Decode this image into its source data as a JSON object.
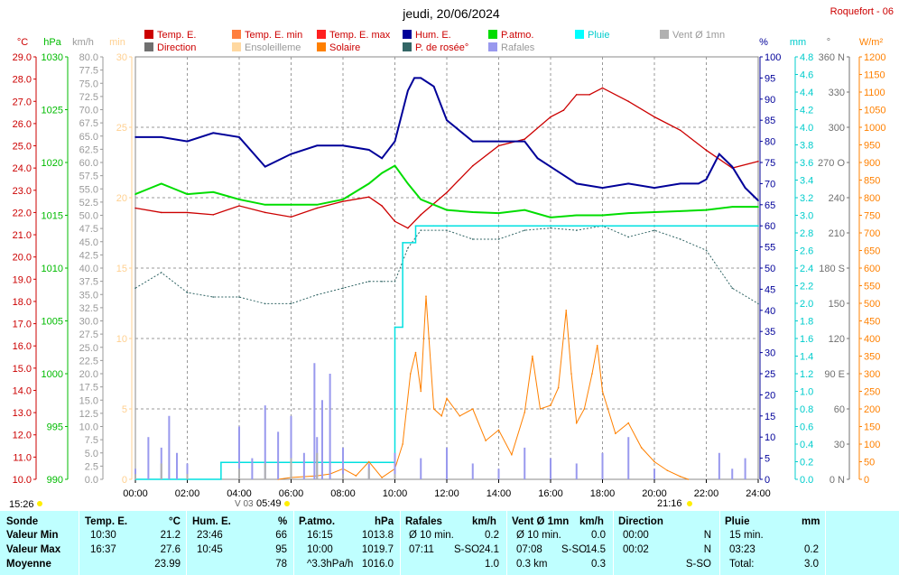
{
  "header": {
    "title": "jeudi, 20/06/2024",
    "station": "Roquefort - 06"
  },
  "legend": [
    {
      "label": "Temp. E.",
      "color": "#cc0000",
      "col": 0,
      "row": 0
    },
    {
      "label": "Temp. E. min",
      "color": "#ff7f3f",
      "col": 1,
      "row": 0
    },
    {
      "label": "Temp. E. max",
      "color": "#ff2020",
      "col": 2,
      "row": 0
    },
    {
      "label": "Hum. E.",
      "color": "#000099",
      "col": 3,
      "row": 0
    },
    {
      "label": "P.atmo.",
      "color": "#00dd00",
      "col": 4,
      "row": 0
    },
    {
      "label": "Pluie",
      "color": "#00ffff",
      "col": 5,
      "row": 0
    },
    {
      "label": "Vent Ø 1mn",
      "color": "#b0b0b0",
      "col": 6,
      "row": 0
    },
    {
      "label": "Direction",
      "color": "#707070",
      "col": 0,
      "row": 1
    },
    {
      "label": "Ensoleilleme",
      "color": "#ffd8a0",
      "col": 1,
      "row": 1
    },
    {
      "label": "Solaire",
      "color": "#ff8000",
      "col": 2,
      "row": 1
    },
    {
      "label": "P. de rosée°",
      "color": "#336666",
      "col": 3,
      "row": 1
    },
    {
      "label": "Rafales",
      "color": "#9999ee",
      "col": 4,
      "row": 1
    }
  ],
  "axes": {
    "temp": {
      "unit": "°C",
      "color": "#cc0000",
      "ticks": [
        "29.0",
        "28.0",
        "27.0",
        "26.0",
        "25.0",
        "24.0",
        "23.0",
        "22.0",
        "21.0",
        "20.0",
        "19.0",
        "18.0",
        "17.0",
        "16.0",
        "15.0",
        "14.0",
        "13.0",
        "12.0",
        "11.0",
        "10.0"
      ]
    },
    "press": {
      "unit": "hPa",
      "color": "#00bb00",
      "ticks": [
        "1030",
        "1025",
        "1020",
        "1015",
        "1010",
        "1005",
        "1000",
        "995",
        "990"
      ]
    },
    "wind": {
      "unit": "km/h",
      "color": "#999999",
      "ticks": [
        "80.0",
        "77.5",
        "75.0",
        "72.5",
        "70.0",
        "67.5",
        "65.0",
        "62.5",
        "60.0",
        "57.5",
        "55.0",
        "52.5",
        "50.0",
        "47.5",
        "45.0",
        "42.5",
        "40.0",
        "37.5",
        "35.0",
        "32.5",
        "30.0",
        "27.5",
        "25.0",
        "22.5",
        "20.0",
        "17.5",
        "15.0",
        "12.5",
        "10.0",
        "7.5",
        "5.0",
        "2.5",
        "0.0"
      ]
    },
    "minutes": {
      "unit": "min",
      "color": "#ffd090",
      "ticks": [
        "30",
        "25",
        "20",
        "15",
        "10",
        "5",
        "0"
      ]
    },
    "hum": {
      "unit": "%",
      "color": "#000099",
      "ticks": [
        "100",
        "95",
        "90",
        "85",
        "80",
        "75",
        "70",
        "65",
        "60",
        "55",
        "50",
        "45",
        "40",
        "35",
        "30",
        "25",
        "20",
        "15",
        "10",
        "5",
        "0"
      ]
    },
    "rain": {
      "unit": "mm",
      "color": "#00cccc",
      "ticks": [
        "4.8",
        "4.6",
        "4.4",
        "4.2",
        "4.0",
        "3.8",
        "3.6",
        "3.4",
        "3.2",
        "3.0",
        "2.8",
        "2.6",
        "2.4",
        "2.2",
        "2.0",
        "1.8",
        "1.6",
        "1.4",
        "1.2",
        "1.0",
        "0.8",
        "0.6",
        "0.4",
        "0.2",
        "0.0"
      ]
    },
    "dir": {
      "unit": "°",
      "color": "#707070",
      "ticks": [
        "360 N",
        "330",
        "300",
        "270 O",
        "240",
        "210",
        "180 S",
        "150",
        "120",
        "90 E",
        "60",
        "30",
        "0 N"
      ]
    },
    "solar": {
      "unit": "W/m²",
      "color": "#ff8000",
      "ticks": [
        "1200",
        "1150",
        "1100",
        "1050",
        "1000",
        "950",
        "900",
        "850",
        "800",
        "750",
        "700",
        "650",
        "600",
        "550",
        "500",
        "450",
        "400",
        "350",
        "300",
        "250",
        "200",
        "150",
        "100",
        "50",
        "0"
      ]
    },
    "time": {
      "ticks": [
        "00:00",
        "02:00",
        "04:00",
        "06:00",
        "08:00",
        "10:00",
        "12:00",
        "14:00",
        "16:00",
        "18:00",
        "20:00",
        "22:00",
        "24:00"
      ]
    }
  },
  "sun": {
    "sunrise_label": "15:26",
    "dawn": "V 03",
    "sunrise": "05:49",
    "sunset": "21:16"
  },
  "chart_data": {
    "type": "line",
    "title": "jeudi, 20/06/2024",
    "x_unit": "hour",
    "x_range": [
      0,
      24
    ],
    "series": [
      {
        "name": "Temp. E.",
        "unit": "°C",
        "x": [
          0,
          1,
          2,
          3,
          4,
          5,
          6,
          7,
          8,
          9,
          9.5,
          10,
          10.5,
          11,
          12,
          13,
          14,
          15,
          16,
          16.5,
          17,
          17.5,
          18,
          19,
          20,
          21,
          22,
          23,
          24
        ],
        "values": [
          22.2,
          22.0,
          22.0,
          21.9,
          22.3,
          22.0,
          21.8,
          22.2,
          22.5,
          22.7,
          22.3,
          21.6,
          21.3,
          21.9,
          22.9,
          24.1,
          25.0,
          25.3,
          26.3,
          26.6,
          27.3,
          27.3,
          27.6,
          27.0,
          26.3,
          25.7,
          24.8,
          24.0,
          24.3
        ]
      },
      {
        "name": "Hum. E.",
        "unit": "%",
        "x": [
          0,
          1,
          2,
          3,
          4,
          5,
          6,
          7,
          8,
          9,
          9.5,
          10,
          10.5,
          10.75,
          11,
          11.5,
          12,
          13,
          14,
          15,
          15.5,
          16,
          17,
          18,
          19,
          20,
          21,
          21.7,
          22,
          22.5,
          23,
          23.5,
          24
        ],
        "values": [
          81,
          81,
          80,
          82,
          81,
          74,
          77,
          79,
          79,
          78,
          76,
          80,
          92,
          95,
          95,
          93,
          85,
          80,
          80,
          80,
          76,
          74,
          70,
          69,
          70,
          69,
          70,
          70,
          71,
          77,
          74,
          69,
          66
        ]
      },
      {
        "name": "P.atmo.",
        "unit": "hPa",
        "x": [
          0,
          0.5,
          1,
          1.5,
          2,
          3,
          4,
          5,
          6,
          7,
          8,
          9,
          9.5,
          10,
          10.5,
          11,
          12,
          13,
          14,
          15,
          16,
          17,
          18,
          19,
          20,
          21,
          22,
          23,
          24
        ],
        "values": [
          1017.0,
          1017.5,
          1018.0,
          1017.5,
          1017.0,
          1017.2,
          1016.5,
          1016.0,
          1016.0,
          1016.0,
          1016.5,
          1018.0,
          1019.0,
          1019.7,
          1018.0,
          1016.5,
          1015.5,
          1015.3,
          1015.2,
          1015.5,
          1014.8,
          1015.0,
          1015.0,
          1015.2,
          1015.3,
          1015.4,
          1015.5,
          1015.8,
          1015.8
        ]
      },
      {
        "name": "P. de rosée°",
        "unit": "°C",
        "x": [
          0,
          1,
          2,
          3,
          4,
          5,
          6,
          7,
          8,
          9,
          9.5,
          10,
          10.5,
          11,
          12,
          13,
          14,
          15,
          16,
          17,
          18,
          19,
          20,
          21,
          22,
          23,
          24
        ],
        "values": [
          18.6,
          19.3,
          18.4,
          18.2,
          18.2,
          17.9,
          17.9,
          18.3,
          18.6,
          18.9,
          18.9,
          18.9,
          20.4,
          21.2,
          21.2,
          20.8,
          20.8,
          21.2,
          21.3,
          21.2,
          21.4,
          20.9,
          21.2,
          20.8,
          20.3,
          18.6,
          17.9
        ]
      },
      {
        "name": "Pluie",
        "unit": "mm",
        "x": [
          0,
          3.3,
          9.8,
          10.0,
          10.3,
          10.8,
          11.5,
          24
        ],
        "values": [
          0,
          0.2,
          0.2,
          1.8,
          2.8,
          3.0,
          3.0,
          3.0
        ]
      },
      {
        "name": "Solaire",
        "unit": "W/m²",
        "x": [
          5.5,
          6,
          7,
          7.5,
          8,
          8.5,
          9,
          9.5,
          10,
          10.3,
          10.6,
          10.8,
          11,
          11.2,
          11.5,
          11.8,
          12,
          12.5,
          13,
          13.5,
          14,
          14.5,
          15,
          15.3,
          15.6,
          16,
          16.3,
          16.6,
          16.8,
          17,
          17.3,
          17.6,
          17.8,
          18,
          18.5,
          19,
          19.5,
          20,
          20.5,
          21,
          21.3
        ],
        "values": [
          0,
          5,
          10,
          15,
          30,
          10,
          50,
          5,
          30,
          100,
          300,
          360,
          250,
          520,
          200,
          180,
          230,
          180,
          200,
          110,
          140,
          70,
          190,
          350,
          200,
          210,
          260,
          480,
          300,
          160,
          200,
          300,
          380,
          250,
          130,
          160,
          90,
          50,
          25,
          8,
          0
        ]
      },
      {
        "name": "Rafales",
        "unit": "km/h",
        "x": [
          0,
          0.5,
          1,
          1.3,
          1.6,
          2,
          3.5,
          4,
          4.5,
          5,
          5.5,
          6,
          6.5,
          6.9,
          7,
          7.2,
          7.5,
          8,
          9,
          10,
          11,
          12,
          13,
          14,
          15,
          16,
          17,
          18,
          19,
          20,
          21,
          22,
          22.5,
          23,
          23.5,
          24
        ],
        "values": [
          2,
          8,
          6,
          12,
          5,
          3,
          0,
          10,
          4,
          14,
          9,
          12,
          5,
          22,
          8,
          15,
          20,
          6,
          3,
          5,
          4,
          6,
          3,
          2,
          6,
          4,
          3,
          5,
          8,
          2,
          0,
          0,
          5,
          2,
          4,
          0
        ]
      },
      {
        "name": "Vent Ø 1mn",
        "unit": "km/h",
        "x": [
          0,
          1,
          2,
          3,
          4,
          5,
          6,
          7,
          8,
          9,
          10,
          11,
          12,
          16,
          20,
          24
        ],
        "values": [
          1,
          3,
          1,
          0,
          2,
          3,
          4,
          5,
          1,
          2,
          1,
          0,
          0,
          0,
          0,
          0
        ]
      }
    ]
  },
  "summary": {
    "headers": [
      "Sonde",
      "Temp. E.",
      "°C",
      "Hum. E.",
      "%",
      "P.atmo.",
      "hPa",
      "Rafales",
      "km/h",
      "Vent Ø 1mn",
      "km/h",
      "Direction",
      "Pluie",
      "mm"
    ],
    "row_labels": [
      "Valeur Min",
      "Valeur Max",
      "Moyenne"
    ],
    "temp": [
      [
        "10:30",
        "21.2"
      ],
      [
        "16:37",
        "27.6"
      ],
      [
        "",
        "23.99"
      ]
    ],
    "hum": [
      [
        "23:46",
        "66"
      ],
      [
        "10:45",
        "95"
      ],
      [
        "",
        "78"
      ]
    ],
    "press": [
      [
        "16:15",
        "1013.8"
      ],
      [
        "10:00",
        "1019.7"
      ],
      [
        "^3.3hPa/h",
        "1016.0"
      ]
    ],
    "gust": [
      [
        "Ø 10 min.",
        "",
        "0.2"
      ],
      [
        "07:11",
        "S-SO",
        "24.1"
      ],
      [
        "",
        "",
        "1.0"
      ]
    ],
    "wind": [
      [
        "Ø 10 min.",
        "",
        "0.0"
      ],
      [
        "07:08",
        "S-SO",
        "14.5"
      ],
      [
        "0.3 km",
        "",
        "0.3"
      ]
    ],
    "dir": [
      [
        "00:00",
        "N"
      ],
      [
        "00:02",
        "N"
      ],
      [
        "",
        "S-SO"
      ]
    ],
    "rain": [
      [
        "15 min.",
        ""
      ],
      [
        "03:23",
        "0.2"
      ],
      [
        "Total:",
        "3.0"
      ]
    ]
  }
}
